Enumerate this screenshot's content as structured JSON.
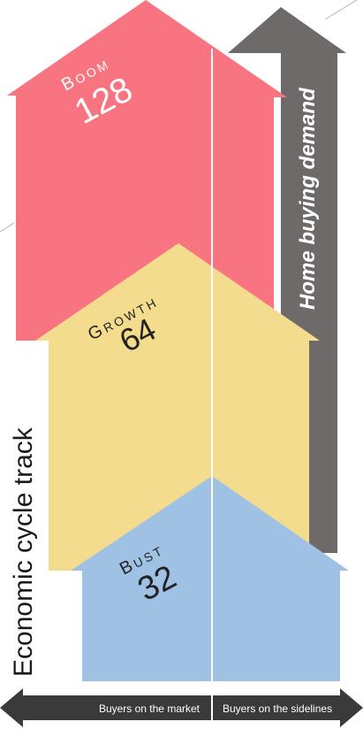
{
  "vertical_axis": {
    "label": "Economic cycle track"
  },
  "demand_arrow": {
    "label": "Home buying demand",
    "color": "#6e6a69"
  },
  "phases": [
    {
      "name": "Boom",
      "value": "128",
      "color": "#f87480"
    },
    {
      "name": "Growth",
      "value": "64",
      "color": "#f3dc8e"
    },
    {
      "name": "Bust",
      "value": "32",
      "color": "#9fc2e4"
    }
  ],
  "bottom_axis": {
    "left_label": "Buyers on the market",
    "right_label": "Buyers on the sidelines",
    "color": "#3b3a3a"
  }
}
